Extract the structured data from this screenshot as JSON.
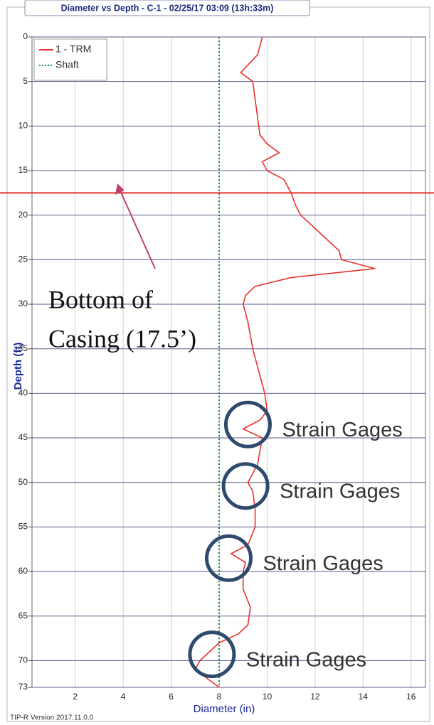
{
  "chart_data": {
    "type": "line",
    "title": "Diameter vs Depth - C-1 - 02/25/17 03:09 (13h:33m)",
    "x_label": "Diameter (in)",
    "y_label": "Depth (ft)",
    "footer": "TIP-R Version 2017.11.0.0",
    "xlim": [
      0.2,
      16.6
    ],
    "xticks": [
      2,
      4,
      6,
      8,
      10,
      12,
      14,
      16
    ],
    "ylim": [
      0,
      73
    ],
    "yticks": [
      0,
      5,
      10,
      15,
      20,
      25,
      30,
      35,
      40,
      45,
      50,
      55,
      60,
      65,
      70,
      73
    ],
    "y_inverted": true,
    "grid": true,
    "series": [
      {
        "name": "1 - TRM",
        "color": "#e8322a",
        "x": [
          9.8,
          9.6,
          8.9,
          9.4,
          9.5,
          9.6,
          9.7,
          10.0,
          10.5,
          9.8,
          10.0,
          10.7,
          11.0,
          11.2,
          11.4,
          12.2,
          13.0,
          13.1,
          14.5,
          11.0,
          9.5,
          9.1,
          9.0,
          9.2,
          9.4,
          9.7,
          9.9,
          10.0,
          9.7,
          9.0,
          9.8,
          9.6,
          9.2,
          9.4,
          9.5,
          9.5,
          9.2,
          8.5,
          9.1,
          9.0,
          9.0,
          9.3,
          9.2,
          8.8,
          8.0,
          7.6,
          7.2,
          7.0,
          7.5,
          8.0
        ],
        "y": [
          0,
          2,
          4,
          5,
          7,
          9,
          11,
          12,
          13,
          14,
          15,
          16,
          17.5,
          19,
          20,
          22,
          24,
          25,
          26,
          27,
          28,
          29,
          30,
          32,
          35,
          38,
          40,
          42,
          43,
          44,
          45,
          48,
          50,
          51,
          53,
          55,
          57,
          58,
          59,
          60,
          62,
          64,
          66,
          67,
          68,
          69,
          70,
          71,
          72,
          73
        ]
      },
      {
        "name": "Shaft",
        "color": "#1a8a4a",
        "x": [
          8,
          8
        ],
        "y": [
          0,
          73
        ]
      }
    ],
    "annotation": {
      "lines": [
        "Bottom of",
        "Casing (17.5’)"
      ],
      "depth": 17.5,
      "color": "#e8322a"
    },
    "strain_gages": [
      {
        "label": "Strain Gages",
        "diameter": 9.2,
        "depth": 43.5
      },
      {
        "label": "Strain Gages",
        "diameter": 9.1,
        "depth": 50.4
      },
      {
        "label": "Strain Gages",
        "diameter": 8.4,
        "depth": 58.5
      },
      {
        "label": "Strain Gages",
        "diameter": 7.7,
        "depth": 69.3
      }
    ]
  }
}
